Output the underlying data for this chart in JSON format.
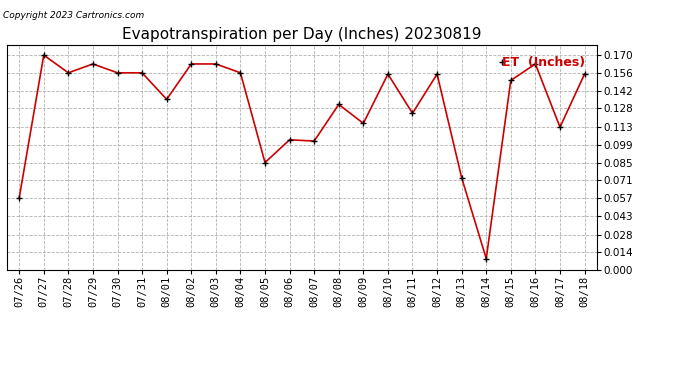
{
  "title": "Evapotranspiration per Day (Inches) 20230819",
  "legend_label": "ET  (Inches)",
  "copyright_text": "Copyright 2023 Cartronics.com",
  "x_labels": [
    "07/26",
    "07/27",
    "07/28",
    "07/29",
    "07/30",
    "07/31",
    "08/01",
    "08/02",
    "08/03",
    "08/04",
    "08/05",
    "08/06",
    "08/07",
    "08/08",
    "08/09",
    "08/10",
    "08/11",
    "08/12",
    "08/13",
    "08/14",
    "08/15",
    "08/16",
    "08/17",
    "08/18"
  ],
  "y_values": [
    0.057,
    0.17,
    0.156,
    0.163,
    0.156,
    0.156,
    0.135,
    0.163,
    0.163,
    0.156,
    0.085,
    0.103,
    0.102,
    0.131,
    0.116,
    0.155,
    0.124,
    0.155,
    0.073,
    0.009,
    0.15,
    0.163,
    0.113,
    0.155
  ],
  "ylim": [
    0.0,
    0.178
  ],
  "yticks": [
    0.0,
    0.014,
    0.028,
    0.043,
    0.057,
    0.071,
    0.085,
    0.099,
    0.113,
    0.128,
    0.142,
    0.156,
    0.17
  ],
  "line_color": "#cc0000",
  "marker_color": "#000000",
  "bg_color": "#ffffff",
  "grid_color": "#aaaaaa",
  "title_fontsize": 11,
  "tick_fontsize": 7.5,
  "legend_fontsize": 9,
  "copyright_fontsize": 6.5
}
